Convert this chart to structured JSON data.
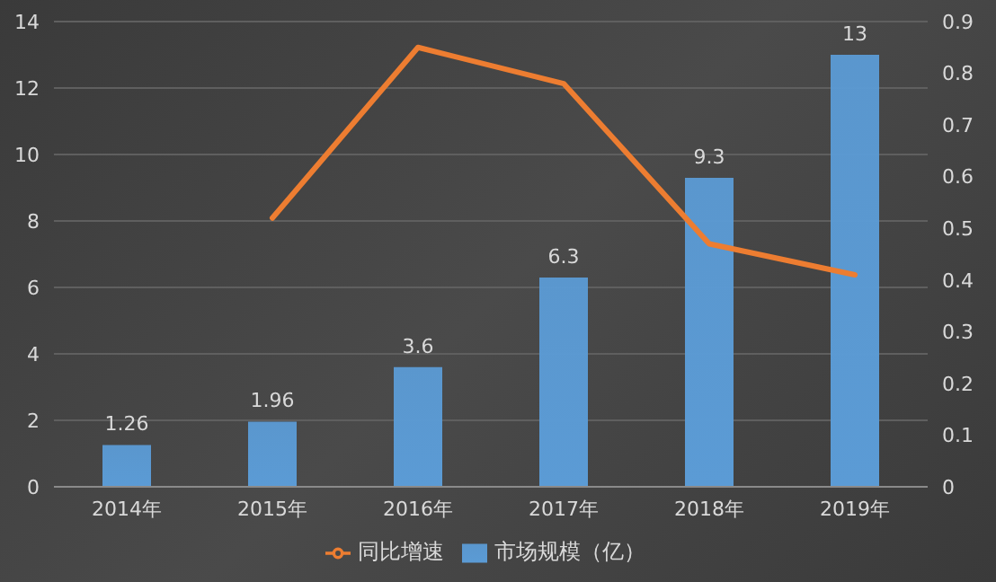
{
  "chart_data": {
    "type": "bar",
    "categories": [
      "2014年",
      "2015年",
      "2016年",
      "2017年",
      "2018年",
      "2019年"
    ],
    "series": [
      {
        "name": "市场规模（亿）",
        "color": "#5b9bd5",
        "values": [
          1.26,
          1.96,
          3.6,
          6.3,
          9.3,
          13
        ],
        "value_labels": [
          "1.26",
          "1.96",
          "3.6",
          "6.3",
          "9.3",
          "13"
        ]
      },
      {
        "name": "同比增速",
        "type": "line",
        "axis": "y2",
        "color": "#ed7d31",
        "values": [
          null,
          0.52,
          0.85,
          0.78,
          0.47,
          0.41
        ]
      }
    ],
    "ylim": [
      0,
      14
    ],
    "yticks": [
      0,
      2,
      4,
      6,
      8,
      10,
      12,
      14
    ],
    "y2lim": [
      0,
      0.9
    ],
    "y2ticks": [
      0,
      0.1,
      0.2,
      0.3,
      0.4,
      0.5,
      0.6,
      0.7,
      0.8,
      0.9
    ],
    "grid": "y",
    "legend": "bottom",
    "marker": "none"
  }
}
